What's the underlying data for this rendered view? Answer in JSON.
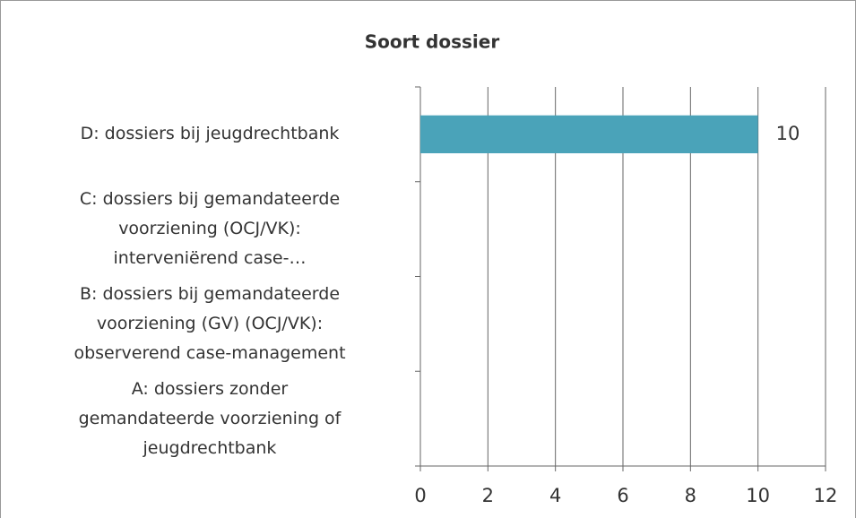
{
  "chart_data": {
    "type": "hbar",
    "title": "Soort dossier",
    "categories": [
      "D: dossiers bij jeugdrechtbank",
      "C: dossiers bij gemandateerde\nvoorziening (OCJ/VK):\ninterveniërend case-…",
      "B: dossiers bij gemandateerde\nvoorziening (GV) (OCJ/VK):\nobserverend case-management",
      "A: dossiers zonder\ngemandateerde voorziening of\njeugdrechtbank"
    ],
    "values": [
      10,
      null,
      null,
      null
    ],
    "color": "#4aa3b9",
    "xlim": [
      0,
      12
    ],
    "xticks": [
      0,
      2,
      4,
      6,
      8,
      10,
      12
    ],
    "grid": true,
    "data_labels": true
  }
}
